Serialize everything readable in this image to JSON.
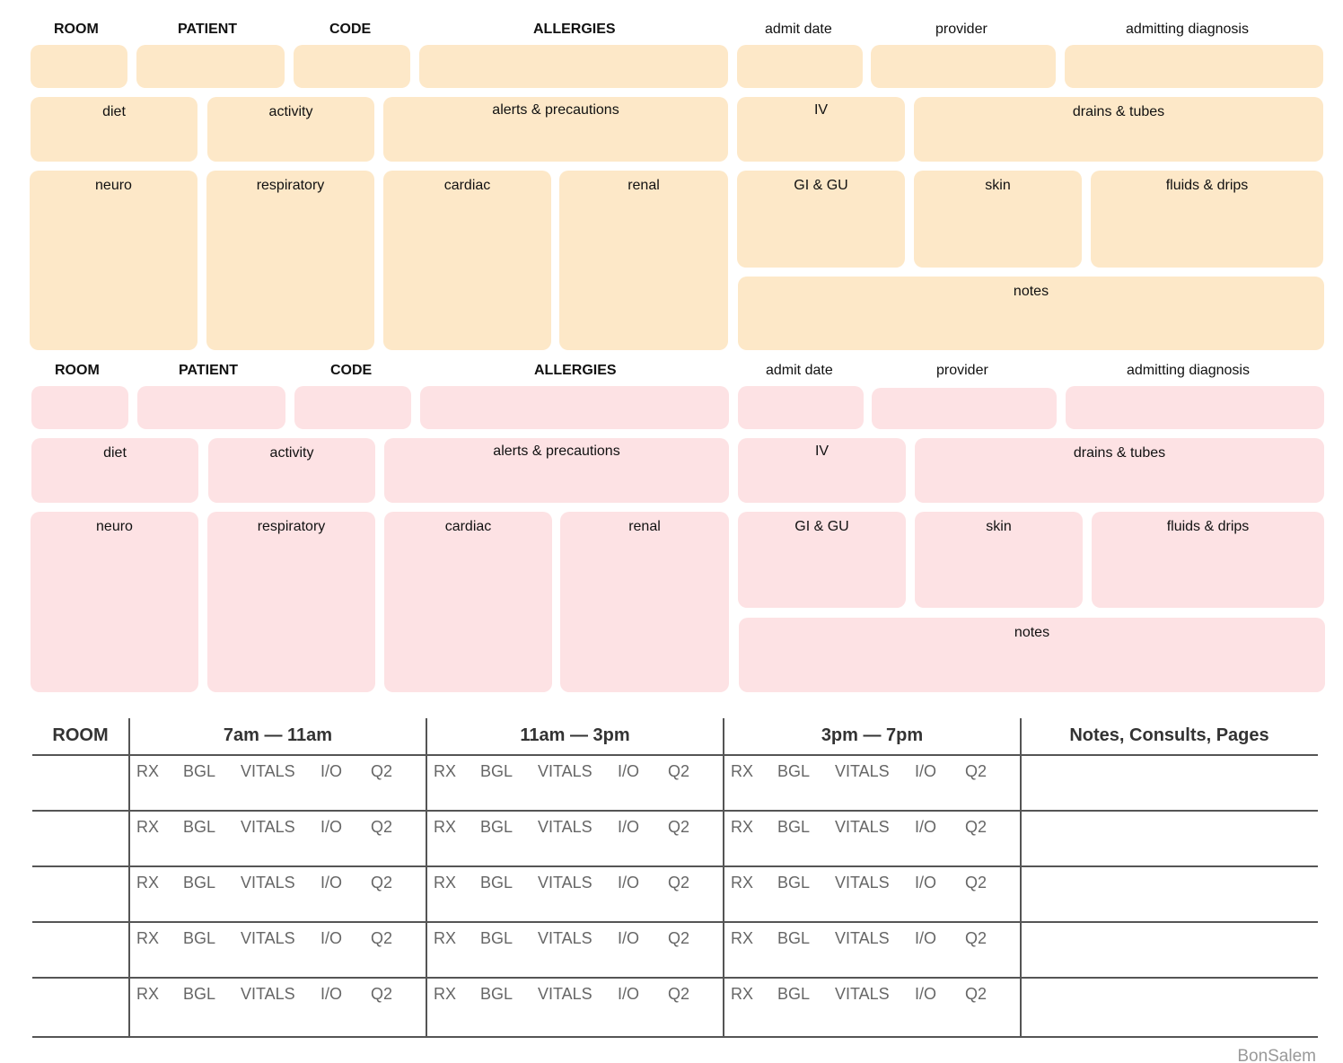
{
  "patient_block": {
    "headers": {
      "room": "ROOM",
      "patient": "PATIENT",
      "code": "CODE",
      "allergies": "ALLERGIES",
      "admit_date": "admit date",
      "provider": "provider",
      "admitting_diagnosis": "admitting diagnosis"
    },
    "boxes": {
      "diet": "diet",
      "activity": "activity",
      "alerts": "alerts & precautions",
      "iv": "IV",
      "drains": "drains & tubes",
      "neuro": "neuro",
      "respiratory": "respiratory",
      "cardiac": "cardiac",
      "renal": "renal",
      "gi_gu": "GI & GU",
      "skin": "skin",
      "fluids": "fluids & drips",
      "notes": "notes"
    },
    "colors": {
      "block1": "#fde8c8",
      "block2": "#fde2e4"
    }
  },
  "schedule": {
    "headers": [
      "ROOM",
      "7am — 11am",
      "11am — 3pm",
      "3pm — 7pm",
      "Notes, Consults, Pages"
    ],
    "checks": [
      "RX",
      "BGL",
      "VITALS",
      "I/O",
      "Q2"
    ],
    "rows": 5
  },
  "signature": "BonSalem"
}
